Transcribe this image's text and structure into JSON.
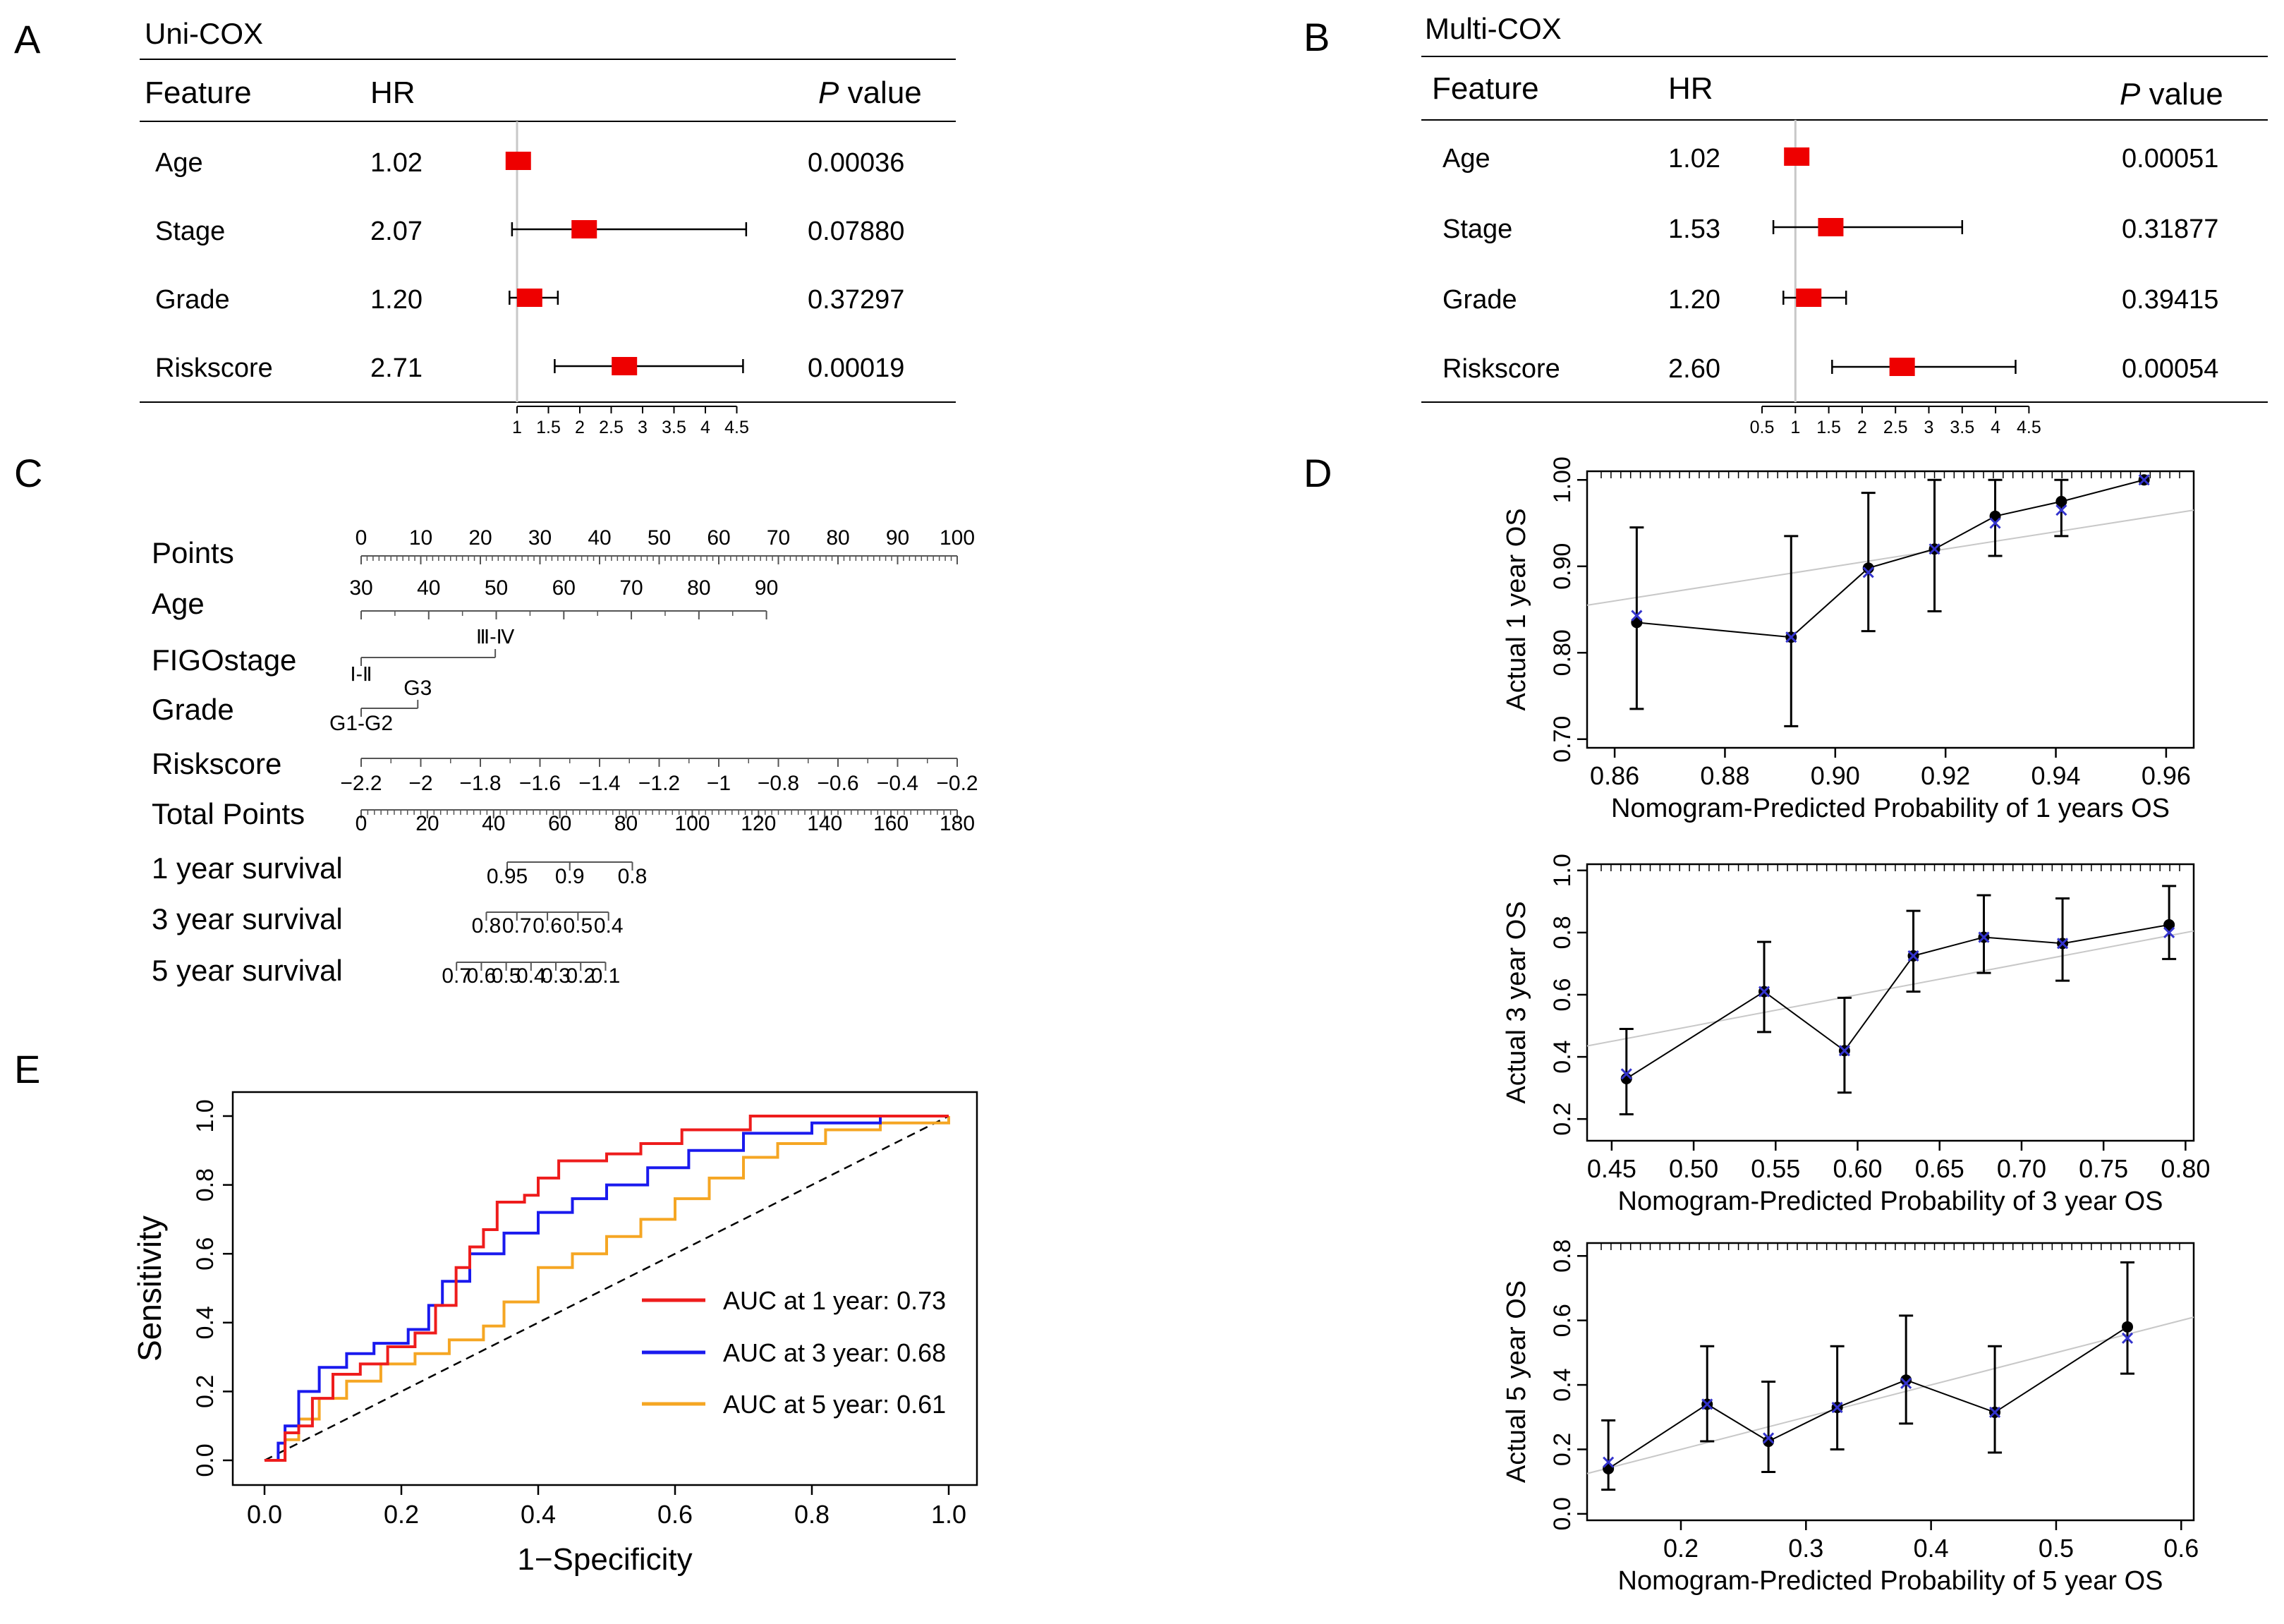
{
  "panel_labels": {
    "a": "A",
    "b": "B",
    "c": "C",
    "d": "D",
    "e": "E"
  },
  "forest": {
    "headers": {
      "feature": "Feature",
      "hr": "HR",
      "p_italic": "P",
      "p_rest": " value"
    },
    "axis_ticks": [
      "1",
      "1.5",
      "2",
      "2.5",
      "3",
      "3.5",
      "4",
      "4.5"
    ],
    "axis_ticks_b": [
      "0.5",
      "1",
      "1.5",
      "2",
      "2.5",
      "3",
      "3.5",
      "4",
      "4.5"
    ]
  },
  "chart_data": [
    {
      "panel": "A",
      "type": "forest",
      "title": "Uni-COX",
      "xlim": [
        1,
        4.5
      ],
      "ref_line": 1,
      "rows": [
        {
          "feature": "Age",
          "hr_label": "1.02",
          "hr": 1.02,
          "lo": 1.0,
          "hi": 1.04,
          "p": "0.00036"
        },
        {
          "feature": "Stage",
          "hr_label": "2.07",
          "hr": 2.07,
          "lo": 0.92,
          "hi": 4.65,
          "p": "0.07880"
        },
        {
          "feature": "Grade",
          "hr_label": "1.20",
          "hr": 1.2,
          "lo": 0.88,
          "hi": 1.65,
          "p": "0.37297"
        },
        {
          "feature": "Riskscore",
          "hr_label": "2.71",
          "hr": 2.71,
          "lo": 1.6,
          "hi": 4.6,
          "p": "0.00019"
        }
      ]
    },
    {
      "panel": "B",
      "type": "forest",
      "title": "Multi-COX",
      "xlim": [
        0.5,
        4.5
      ],
      "ref_line": 1,
      "rows": [
        {
          "feature": "Age",
          "hr_label": "1.02",
          "hr": 1.02,
          "lo": 1.0,
          "hi": 1.04,
          "p": "0.00051"
        },
        {
          "feature": "Stage",
          "hr_label": "1.53",
          "hr": 1.53,
          "lo": 0.67,
          "hi": 3.5,
          "p": "0.31877"
        },
        {
          "feature": "Grade",
          "hr_label": "1.20",
          "hr": 1.2,
          "lo": 0.82,
          "hi": 1.76,
          "p": "0.39415"
        },
        {
          "feature": "Riskscore",
          "hr_label": "2.60",
          "hr": 2.6,
          "lo": 1.55,
          "hi": 4.3,
          "p": "0.00054"
        }
      ]
    },
    {
      "panel": "C",
      "type": "nomogram",
      "rows": [
        {
          "label": "Points",
          "range": [
            0,
            100
          ],
          "ticks": [
            "0",
            "10",
            "20",
            "30",
            "40",
            "50",
            "60",
            "70",
            "80",
            "90",
            "100"
          ]
        },
        {
          "label": "Age",
          "range": [
            30,
            90
          ],
          "ticks": [
            "30",
            "40",
            "50",
            "60",
            "70",
            "80",
            "90"
          ]
        },
        {
          "label": "FIGOstage",
          "levels": [
            "Ⅰ-Ⅱ",
            "Ⅲ-Ⅳ"
          ]
        },
        {
          "label": "Grade",
          "levels": [
            "G1-G2",
            "G3"
          ]
        },
        {
          "label": "Riskscore",
          "range": [
            -2.2,
            -0.2
          ],
          "ticks": [
            "−2.2",
            "−2",
            "−1.8",
            "−1.6",
            "−1.4",
            "−1.2",
            "−1",
            "−0.8",
            "−0.6",
            "−0.4",
            "−0.2"
          ]
        },
        {
          "label": "Total Points",
          "range": [
            0,
            180
          ],
          "ticks": [
            "0",
            "20",
            "40",
            "60",
            "80",
            "100",
            "120",
            "140",
            "160",
            "180"
          ]
        },
        {
          "label": "1 year survival",
          "ticks": [
            "0.95",
            "0.9",
            "0.8"
          ]
        },
        {
          "label": "3 year survival",
          "ticks": [
            "0.8",
            "0.7",
            "0.6",
            "0.5",
            "0.4"
          ]
        },
        {
          "label": "5 year survival",
          "ticks": [
            "0.7",
            "0.6",
            "0.5",
            "0.4",
            "0.3",
            "0.2",
            "0.1"
          ]
        }
      ]
    },
    {
      "panel": "D",
      "type": "calibration",
      "plots": [
        {
          "ylabel": "Actual 1 year OS",
          "xlabel": "Nomogram-Predicted Probability of 1 years OS",
          "xlim": [
            0.855,
            0.965
          ],
          "ylim": [
            0.69,
            1.01
          ],
          "xticks": [
            "0.86",
            "0.88",
            "0.90",
            "0.92",
            "0.94",
            "0.96"
          ],
          "yticks": [
            "0.70",
            "0.80",
            "0.90",
            "1.00"
          ],
          "points": [
            {
              "x": 0.864,
              "y": 0.835,
              "lo": 0.735,
              "hi": 0.945,
              "xm": 0.843
            },
            {
              "x": 0.892,
              "y": 0.818,
              "lo": 0.715,
              "hi": 0.935,
              "xm": 0.818
            },
            {
              "x": 0.906,
              "y": 0.898,
              "lo": 0.825,
              "hi": 0.985,
              "xm": 0.893
            },
            {
              "x": 0.918,
              "y": 0.92,
              "lo": 0.848,
              "hi": 1.0,
              "xm": 0.92
            },
            {
              "x": 0.929,
              "y": 0.958,
              "lo": 0.912,
              "hi": 1.0,
              "xm": 0.95
            },
            {
              "x": 0.941,
              "y": 0.975,
              "lo": 0.935,
              "hi": 1.0,
              "xm": 0.965
            },
            {
              "x": 0.956,
              "y": 1.0,
              "lo": 1.0,
              "hi": 1.0,
              "xm": 1.0
            }
          ]
        },
        {
          "ylabel": "Actual 3 year OS",
          "xlabel": "Nomogram-Predicted Probability of 3 year OS",
          "xlim": [
            0.435,
            0.805
          ],
          "ylim": [
            0.13,
            1.02
          ],
          "xticks": [
            "0.45",
            "0.50",
            "0.55",
            "0.60",
            "0.65",
            "0.70",
            "0.75",
            "0.80"
          ],
          "yticks": [
            "0.2",
            "0.4",
            "0.6",
            "0.8",
            "1.0"
          ],
          "points": [
            {
              "x": 0.459,
              "y": 0.33,
              "lo": 0.215,
              "hi": 0.49,
              "xm": 0.345
            },
            {
              "x": 0.543,
              "y": 0.61,
              "lo": 0.48,
              "hi": 0.77,
              "xm": 0.61
            },
            {
              "x": 0.592,
              "y": 0.42,
              "lo": 0.285,
              "hi": 0.59,
              "xm": 0.42
            },
            {
              "x": 0.634,
              "y": 0.725,
              "lo": 0.61,
              "hi": 0.87,
              "xm": 0.725
            },
            {
              "x": 0.677,
              "y": 0.785,
              "lo": 0.67,
              "hi": 0.92,
              "xm": 0.785
            },
            {
              "x": 0.725,
              "y": 0.765,
              "lo": 0.645,
              "hi": 0.91,
              "xm": 0.765
            },
            {
              "x": 0.79,
              "y": 0.825,
              "lo": 0.715,
              "hi": 0.95,
              "xm": 0.8
            }
          ]
        },
        {
          "ylabel": "Actual 5 year OS",
          "xlabel": "Nomogram-Predicted Probability of 5 year OS",
          "xlim": [
            0.125,
            0.61
          ],
          "ylim": [
            -0.02,
            0.84
          ],
          "xticks": [
            "0.2",
            "0.3",
            "0.4",
            "0.5",
            "0.6"
          ],
          "yticks": [
            "0.0",
            "0.2",
            "0.4",
            "0.6",
            "0.8"
          ],
          "points": [
            {
              "x": 0.142,
              "y": 0.14,
              "lo": 0.075,
              "hi": 0.29,
              "xm": 0.16
            },
            {
              "x": 0.221,
              "y": 0.34,
              "lo": 0.225,
              "hi": 0.52,
              "xm": 0.34
            },
            {
              "x": 0.27,
              "y": 0.225,
              "lo": 0.13,
              "hi": 0.41,
              "xm": 0.235
            },
            {
              "x": 0.325,
              "y": 0.33,
              "lo": 0.2,
              "hi": 0.52,
              "xm": 0.33
            },
            {
              "x": 0.38,
              "y": 0.415,
              "lo": 0.28,
              "hi": 0.615,
              "xm": 0.405
            },
            {
              "x": 0.451,
              "y": 0.315,
              "lo": 0.19,
              "hi": 0.52,
              "xm": 0.315
            },
            {
              "x": 0.557,
              "y": 0.58,
              "lo": 0.435,
              "hi": 0.78,
              "xm": 0.545
            }
          ]
        }
      ]
    },
    {
      "panel": "E",
      "type": "line",
      "xlabel": "1−Specificity",
      "ylabel": "Sensitivity",
      "xlim": [
        0,
        1
      ],
      "ylim": [
        0,
        1
      ],
      "xticks": [
        "0.0",
        "0.2",
        "0.4",
        "0.6",
        "0.8",
        "1.0"
      ],
      "yticks": [
        "0.0",
        "0.2",
        "0.4",
        "0.6",
        "0.8",
        "1.0"
      ],
      "series": [
        {
          "name": "AUC at 1 year: 0.73",
          "color": "#ee1c1c",
          "points": [
            [
              0,
              0
            ],
            [
              0.03,
              0.03
            ],
            [
              0.03,
              0.08
            ],
            [
              0.05,
              0.1
            ],
            [
              0.07,
              0.18
            ],
            [
              0.1,
              0.25
            ],
            [
              0.14,
              0.28
            ],
            [
              0.18,
              0.33
            ],
            [
              0.22,
              0.37
            ],
            [
              0.25,
              0.45
            ],
            [
              0.28,
              0.56
            ],
            [
              0.3,
              0.62
            ],
            [
              0.32,
              0.67
            ],
            [
              0.34,
              0.75
            ],
            [
              0.38,
              0.77
            ],
            [
              0.4,
              0.82
            ],
            [
              0.43,
              0.87
            ],
            [
              0.5,
              0.89
            ],
            [
              0.55,
              0.92
            ],
            [
              0.61,
              0.96
            ],
            [
              0.71,
              1.0
            ],
            [
              1,
              1
            ]
          ]
        },
        {
          "name": "AUC at 3 year: 0.68",
          "color": "#1a1aee",
          "points": [
            [
              0,
              0
            ],
            [
              0.02,
              0.05
            ],
            [
              0.03,
              0.1
            ],
            [
              0.05,
              0.2
            ],
            [
              0.08,
              0.27
            ],
            [
              0.12,
              0.31
            ],
            [
              0.16,
              0.34
            ],
            [
              0.21,
              0.38
            ],
            [
              0.24,
              0.45
            ],
            [
              0.26,
              0.52
            ],
            [
              0.3,
              0.6
            ],
            [
              0.35,
              0.66
            ],
            [
              0.4,
              0.72
            ],
            [
              0.45,
              0.76
            ],
            [
              0.5,
              0.8
            ],
            [
              0.56,
              0.85
            ],
            [
              0.62,
              0.9
            ],
            [
              0.7,
              0.95
            ],
            [
              0.8,
              0.98
            ],
            [
              0.9,
              1.0
            ],
            [
              1,
              1
            ]
          ]
        },
        {
          "name": "AUC at 5 year: 0.61",
          "color": "#f5a623",
          "points": [
            [
              0,
              0
            ],
            [
              0.03,
              0.06
            ],
            [
              0.05,
              0.12
            ],
            [
              0.08,
              0.18
            ],
            [
              0.12,
              0.23
            ],
            [
              0.17,
              0.28
            ],
            [
              0.22,
              0.31
            ],
            [
              0.27,
              0.35
            ],
            [
              0.32,
              0.39
            ],
            [
              0.35,
              0.46
            ],
            [
              0.4,
              0.56
            ],
            [
              0.45,
              0.6
            ],
            [
              0.5,
              0.65
            ],
            [
              0.55,
              0.7
            ],
            [
              0.6,
              0.76
            ],
            [
              0.65,
              0.82
            ],
            [
              0.7,
              0.88
            ],
            [
              0.75,
              0.92
            ],
            [
              0.82,
              0.96
            ],
            [
              0.9,
              0.98
            ],
            [
              1,
              1
            ]
          ]
        }
      ]
    }
  ]
}
